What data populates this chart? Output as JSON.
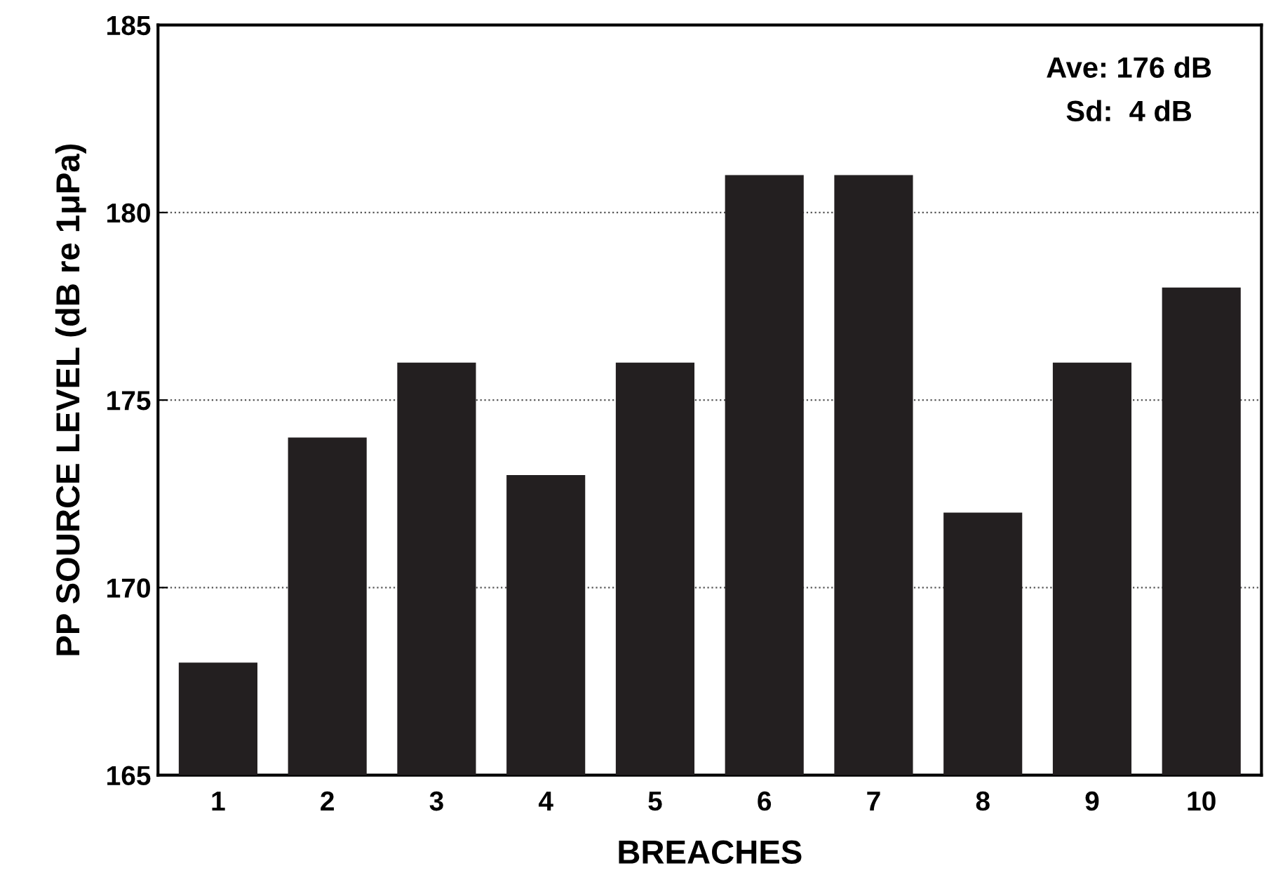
{
  "chart_data": {
    "type": "bar",
    "xlabel": "BREACHES",
    "ylabel": "PP SOURCE LEVEL (dB re 1μPa)",
    "categories": [
      "1",
      "2",
      "3",
      "4",
      "5",
      "6",
      "7",
      "8",
      "9",
      "10"
    ],
    "values": [
      168,
      174,
      176,
      173,
      176,
      181,
      181,
      172,
      176,
      178
    ],
    "color": "#231f20",
    "ylim": [
      165,
      185
    ],
    "yticks": [
      165,
      170,
      175,
      180,
      185
    ],
    "grid": "y",
    "line_style": "dotted",
    "annotations": [
      "Ave: 176 dB",
      "Sd:  4 dB"
    ]
  }
}
